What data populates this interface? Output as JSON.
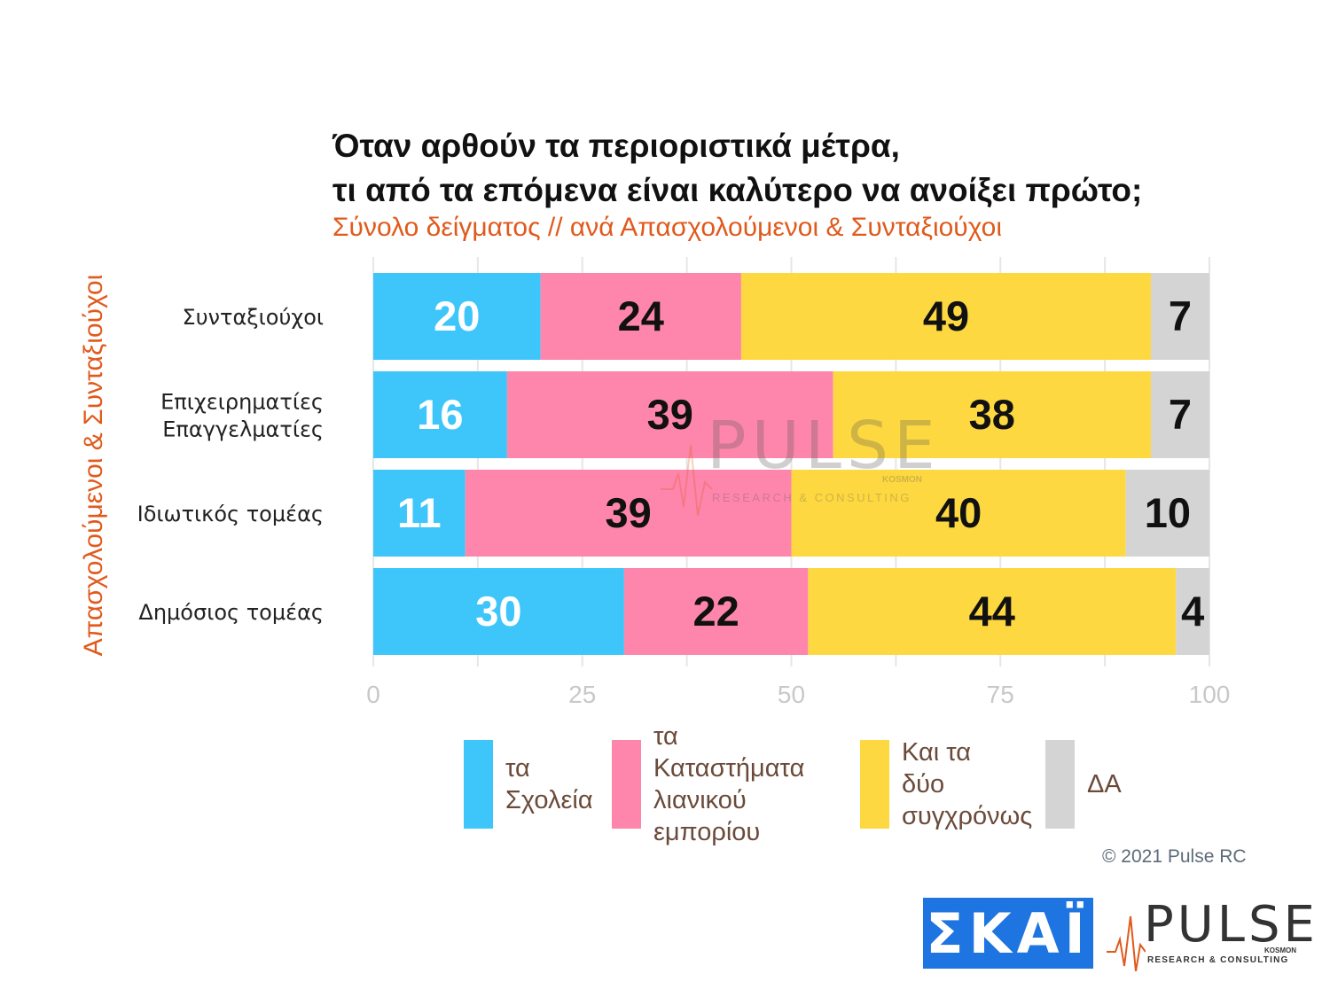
{
  "title_lines": [
    "Όταν αρθούν τα περιοριστικά μέτρα,",
    "τι από τα επόμενα είναι καλύτερο να ανοίξει πρώτο;"
  ],
  "subtitle": "Σύνολο δείγματος // ανά Απασχολούμενοι & Συνταξιούχοι",
  "copyright": "© 2021 Pulse RC",
  "logos": {
    "skai": "ΣΚΑΪ",
    "pulse": "PULSE",
    "pulse_sub": "RESEARCH & CONSULTING",
    "pulse_kosmon": "KOSMON"
  },
  "colors": {
    "schools": "#3ec6fb",
    "retail": "#fe86ac",
    "both": "#fed840",
    "na": "#d4d4d4",
    "accent": "#e05a1c"
  },
  "chart_data": {
    "type": "bar",
    "orientation": "horizontal",
    "stacked": true,
    "ylabel": "Απασχολούμενοι & Συνταξιούχοι",
    "categories": [
      [
        "Συνταξιούχοι"
      ],
      [
        "Επιχειρηματίες",
        "Επαγγελματίες"
      ],
      [
        "Ιδιωτικός τομέας"
      ],
      [
        "Δημόσιος τομέας"
      ]
    ],
    "series": [
      {
        "name": "τα Σχολεία",
        "legend_lines": [
          "τα",
          "Σχολεία"
        ],
        "color": "#3ec6fb",
        "label_color": "#ffffff",
        "values": [
          20,
          16,
          11,
          30
        ]
      },
      {
        "name": "τα Καταστήματα λιανικού εμπορίου",
        "legend_lines": [
          "τα Καταστήματα",
          "λιανικού",
          "εμπορίου"
        ],
        "color": "#fe86ac",
        "label_color": "#111111",
        "values": [
          24,
          39,
          39,
          22
        ]
      },
      {
        "name": "Και τα δύο συγχρόνως",
        "legend_lines": [
          "Και τα",
          "δύο",
          "συγχρόνως"
        ],
        "color": "#fed840",
        "label_color": "#111111",
        "values": [
          49,
          38,
          40,
          44
        ]
      },
      {
        "name": "ΔΑ",
        "legend_lines": [
          "ΔΑ"
        ],
        "color": "#d4d4d4",
        "label_color": "#111111",
        "values": [
          7,
          7,
          10,
          4
        ]
      }
    ],
    "xlim": [
      0,
      100
    ],
    "xticks": [
      0,
      25,
      50,
      75,
      100
    ],
    "grid": true,
    "legend": "bottom"
  }
}
